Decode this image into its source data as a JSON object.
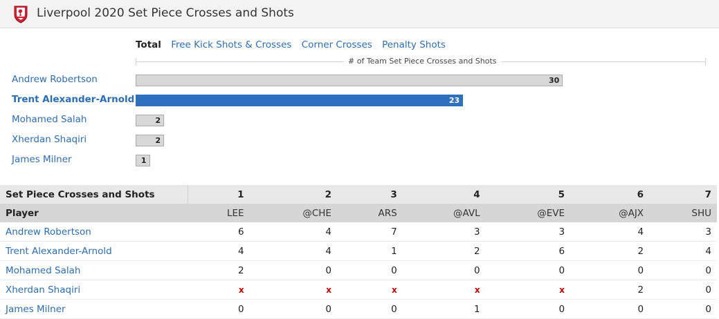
{
  "header": {
    "title": "Liverpool 2020 Set Piece Crosses and Shots",
    "logo": "liverpool-crest"
  },
  "tabs": [
    {
      "label": "Total",
      "active": true
    },
    {
      "label": "Free Kick Shots & Crosses",
      "active": false
    },
    {
      "label": "Corner Crosses",
      "active": false
    },
    {
      "label": "Penalty Shots",
      "active": false
    }
  ],
  "colors": {
    "highlight": "#2e6fbf",
    "bar": "#d8d8d8",
    "link": "#2a6ebb",
    "missing": "#cc0000"
  },
  "chart_data": {
    "type": "bar",
    "orientation": "horizontal",
    "title": "",
    "xlabel": "# of Team Set Piece Crosses and Shots",
    "xlim": [
      0,
      40
    ],
    "categories": [
      "Andrew Robertson",
      "Trent Alexander-Arnold",
      "Mohamed Salah",
      "Xherdan Shaqiri",
      "James Milner"
    ],
    "values": [
      30,
      23,
      2,
      2,
      1
    ],
    "highlighted": "Trent Alexander-Arnold",
    "grid": false
  },
  "table": {
    "title": "Set Piece Crosses and Shots",
    "player_header": "Player",
    "games": [
      "1",
      "2",
      "3",
      "4",
      "5",
      "6",
      "7"
    ],
    "opponents": [
      "LEE",
      "@CHE",
      "ARS",
      "@AVL",
      "@EVE",
      "@AJX",
      "SHU"
    ],
    "missing_marker": "x",
    "rows": [
      {
        "player": "Andrew Robertson",
        "values": [
          "6",
          "4",
          "7",
          "3",
          "3",
          "4",
          "3"
        ]
      },
      {
        "player": "Trent Alexander-Arnold",
        "values": [
          "4",
          "4",
          "1",
          "2",
          "6",
          "2",
          "4"
        ]
      },
      {
        "player": "Mohamed Salah",
        "values": [
          "2",
          "0",
          "0",
          "0",
          "0",
          "0",
          "0"
        ]
      },
      {
        "player": "Xherdan Shaqiri",
        "values": [
          "x",
          "x",
          "x",
          "x",
          "x",
          "2",
          "0"
        ]
      },
      {
        "player": "James Milner",
        "values": [
          "0",
          "0",
          "0",
          "1",
          "0",
          "0",
          "0"
        ]
      }
    ]
  }
}
